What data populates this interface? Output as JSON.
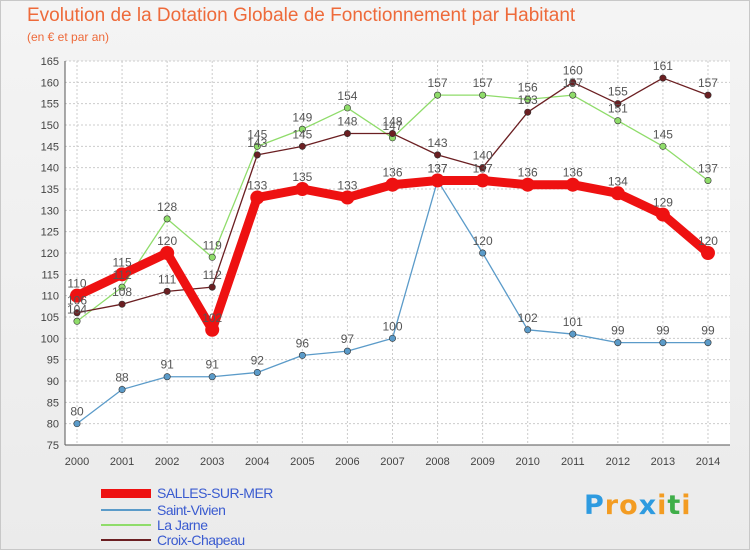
{
  "title": "Evolution de la Dotation Globale de Fonctionnement par Habitant",
  "subtitle": "(en € et par an)",
  "logo": {
    "letters": [
      "P",
      "r",
      "o",
      "x",
      "i",
      "t",
      "i"
    ],
    "colors": [
      "#2e9be0",
      "#f39c22",
      "#f39c22",
      "#2e9be0",
      "#f39c22",
      "#3fae49",
      "#f39c22"
    ]
  },
  "chart_data": {
    "type": "line",
    "title": "Evolution de la Dotation Globale de Fonctionnement par Habitant",
    "subtitle": "(en € et par an)",
    "xlabel": "",
    "ylabel": "",
    "x": [
      "2000",
      "2001",
      "2002",
      "2003",
      "2004",
      "2005",
      "2006",
      "2007",
      "2008",
      "2009",
      "2010",
      "2011",
      "2012",
      "2013",
      "2014"
    ],
    "ylim": [
      75,
      165
    ],
    "yticks": [
      75,
      80,
      85,
      90,
      95,
      100,
      105,
      110,
      115,
      120,
      125,
      130,
      135,
      140,
      145,
      150,
      155,
      160,
      165
    ],
    "grid": true,
    "legend_position": "bottom-left",
    "series": [
      {
        "name": "SALLES-SUR-MER",
        "color": "#ee1111",
        "values": [
          110,
          115,
          120,
          102,
          133,
          135,
          133,
          136,
          137,
          137,
          136,
          136,
          134,
          129,
          120
        ]
      },
      {
        "name": "Saint-Vivien",
        "color": "#5b9bc9",
        "values": [
          80,
          88,
          91,
          91,
          92,
          96,
          97,
          100,
          137,
          120,
          102,
          101,
          99,
          99,
          99
        ]
      },
      {
        "name": "La Jarne",
        "color": "#8fdc6a",
        "values": [
          104,
          112,
          128,
          119,
          145,
          149,
          154,
          147,
          157,
          157,
          156,
          157,
          151,
          145,
          137
        ]
      },
      {
        "name": "Croix-Chapeau",
        "color": "#6b1f22",
        "values": [
          106,
          108,
          111,
          112,
          143,
          145,
          148,
          148,
          143,
          140,
          153,
          160,
          155,
          161,
          157
        ]
      }
    ]
  }
}
